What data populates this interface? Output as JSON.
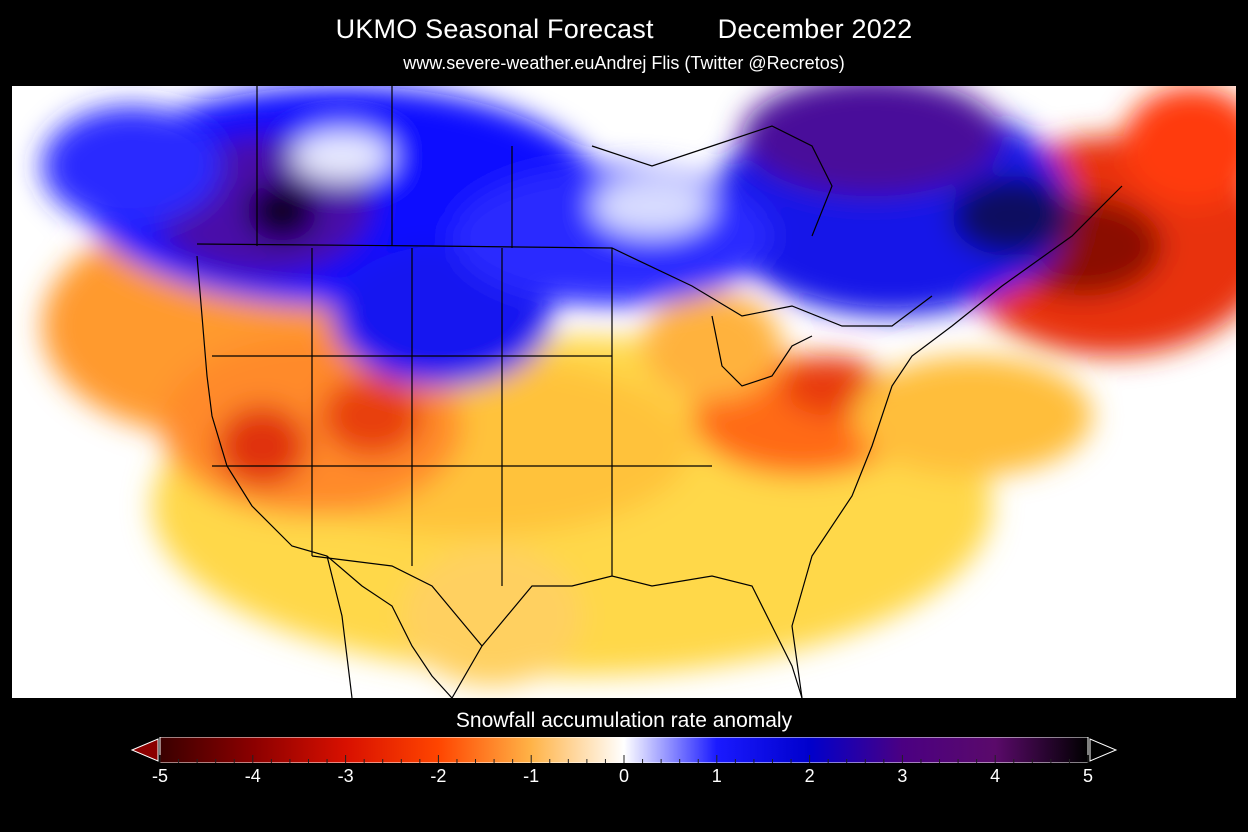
{
  "header": {
    "title": "UKMO Seasonal Forecast",
    "period": "December 2022",
    "website": "www.severe-weather.eu",
    "author": "Andrej Flis (Twitter @Recretos)"
  },
  "map": {
    "region": "North America",
    "background_color": "#ffffff",
    "border_color": "#000000",
    "anomaly_regions": [
      {
        "area": "Western Canada",
        "anomaly": 2
      },
      {
        "area": "British Columbia interior",
        "anomaly": 4
      },
      {
        "area": "Hudson Bay",
        "anomaly": 3
      },
      {
        "area": "Quebec",
        "anomaly": 2
      },
      {
        "area": "Northern Plains",
        "anomaly": 1
      },
      {
        "area": "Great Basin",
        "anomaly": -2
      },
      {
        "area": "Ohio Valley and Mid-Atlantic",
        "anomaly": -2
      },
      {
        "area": "Southern Plains and Texas",
        "anomaly": -1
      },
      {
        "area": "Atlantic Canada",
        "anomaly": -4
      }
    ]
  },
  "colorbar": {
    "title": "Snowfall accumulation rate anomaly",
    "ticks": [
      "-5",
      "-4",
      "-3",
      "-2",
      "-1",
      "0",
      "1",
      "2",
      "3",
      "4",
      "5"
    ],
    "colors": {
      "neg5": "#3a0000",
      "neg4": "#8b0000",
      "neg3": "#d81000",
      "neg2": "#ff4500",
      "neg1": "#ffb347",
      "zero": "#ffffff",
      "pos1": "#1a1aff",
      "pos2": "#0000cc",
      "pos3": "#4b0082",
      "pos4": "#5a0a6a",
      "pos5": "#000000"
    }
  }
}
